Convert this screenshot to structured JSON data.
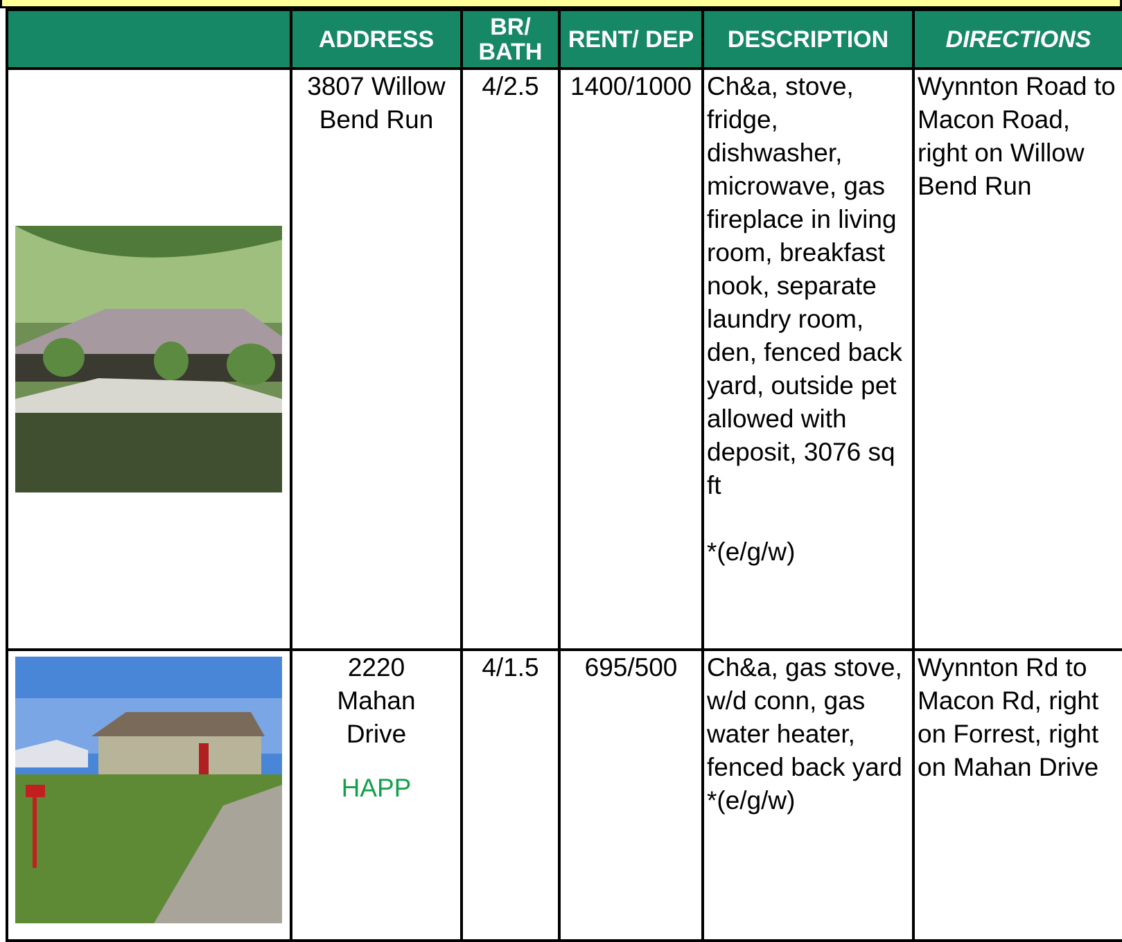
{
  "table": {
    "headers": [
      "ADDRESS",
      "BR/ BATH",
      "RENT/ DEP",
      "DESCRIPTION",
      "DIRECTIONS"
    ],
    "rows": [
      {
        "address": "3807 Willow Bend Run",
        "br_bath": "4/2.5",
        "rent_dep": "1400/1000",
        "description": "Ch&a, stove, fridge, dishwasher, microwave, gas fireplace in living room, breakfast nook, separate laundry room, den, fenced back yard, outside pet allowed with deposit, 3076 sq ft",
        "utilities": "*(e/g/w)",
        "directions": "Wynnton Road to Macon Road, right on Willow Bend Run"
      },
      {
        "address": "2220 Mahan Drive",
        "note": "HAPP",
        "br_bath": "4/1.5",
        "rent_dep": "695/500",
        "description": "Ch&a, gas stove, w/d conn, gas water heater, fenced back yard",
        "utilities": "*(e/g/w)",
        "directions": "Wynnton Rd to Macon Rd, right on Forrest, right on Mahan Drive"
      }
    ]
  }
}
